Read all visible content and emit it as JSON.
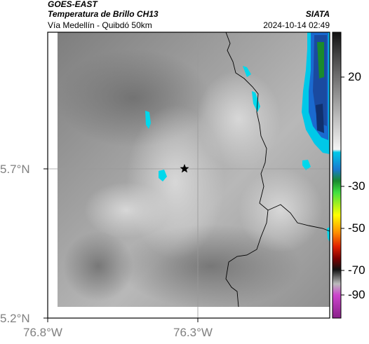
{
  "header": {
    "satellite": "GOES-EAST",
    "product": "Temperatura de Brillo CH13",
    "region": "Vía Medellín - Quibdó 50km",
    "source": "SIATA",
    "datetime": "2024-10-14 02:49"
  },
  "map": {
    "lon_ticks": [
      "76.8°W",
      "76.3°W"
    ],
    "lat_ticks": [
      "5.7°N",
      "5.2°N"
    ],
    "marker": "star-icon"
  },
  "colorbar": {
    "ticks": [
      "20",
      "-30",
      "-50",
      "-70",
      "-90"
    ],
    "colors": [
      "#111111",
      "#1a8a2e",
      "#1aa0d8",
      "#00e0e0",
      "#ffff00",
      "#ff6000",
      "#c00000",
      "#cc44cc"
    ]
  }
}
